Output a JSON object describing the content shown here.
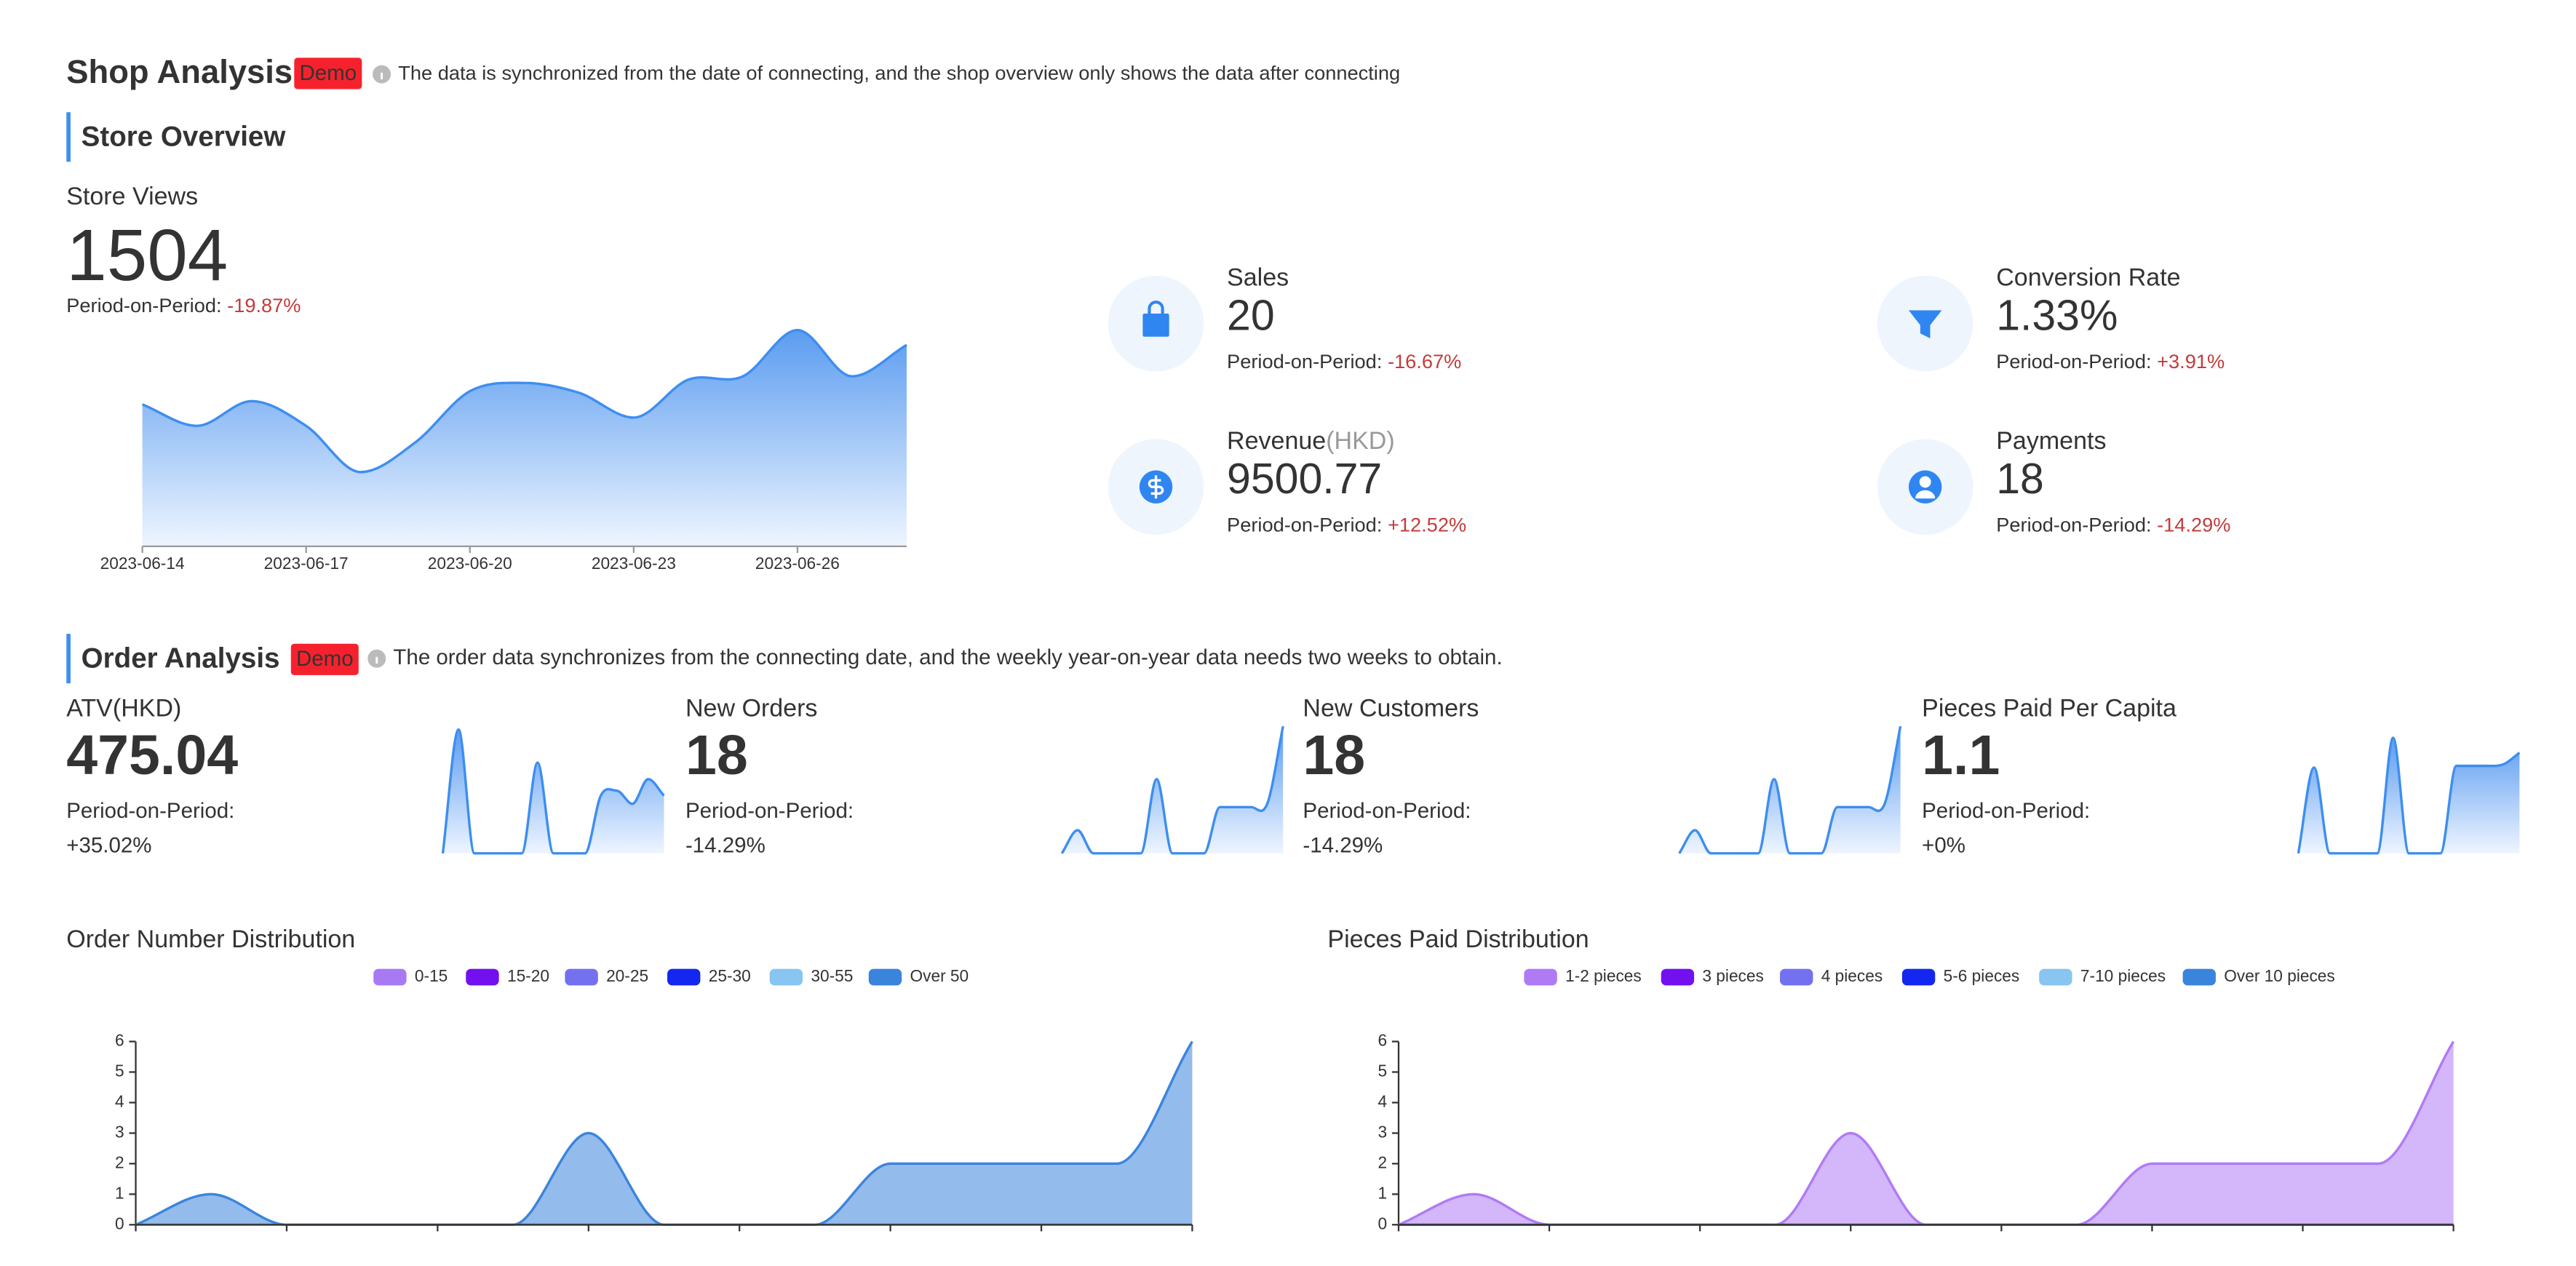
{
  "header": {
    "title": "Shop Analysis",
    "badge": "Demo",
    "note": "The data is synchronized from the date of connecting, and the shop overview only shows the data after connecting"
  },
  "store_overview": {
    "title": "Store Overview",
    "store_views": {
      "label": "Store Views",
      "value": "1504",
      "change_label": "Period-on-Period:",
      "change": "-19.87%"
    },
    "metrics": [
      {
        "label": "Sales",
        "value": "20",
        "change_label": "Period-on-Period:",
        "change": "-16.67%"
      },
      {
        "label": "Conversion Rate",
        "value": "1.33%",
        "change_label": "Period-on-Period:",
        "change": "+3.91%"
      },
      {
        "label": "Revenue",
        "unit": "(HKD)",
        "value": "9500.77",
        "change_label": "Period-on-Period:",
        "change": "+12.52%"
      },
      {
        "label": "Payments",
        "value": "18",
        "change_label": "Period-on-Period:",
        "change": "-14.29%"
      }
    ]
  },
  "order_analysis": {
    "title": "Order Analysis",
    "badge": "Demo",
    "note": "The order data synchronizes from the connecting date, and the weekly year-on-year data needs two weeks to obtain.",
    "kpis": [
      {
        "label": "ATV(HKD)",
        "value": "475.04",
        "change_label": "Period-on-Period:",
        "change": "+35.02%"
      },
      {
        "label": "New Orders",
        "value": "18",
        "change_label": "Period-on-Period:",
        "change": "-14.29%"
      },
      {
        "label": "New Customers",
        "value": "18",
        "change_label": "Period-on-Period:",
        "change": "-14.29%"
      },
      {
        "label": "Pieces Paid Per Capita",
        "value": "1.1",
        "change_label": "Period-on-Period:",
        "change": "+0%"
      }
    ]
  },
  "chart_data": [
    {
      "type": "area",
      "categories": [
        "2023-06-14",
        null,
        null,
        "2023-06-17",
        null,
        null,
        "2023-06-20",
        null,
        null,
        "2023-06-23",
        null,
        null,
        "2023-06-26",
        null,
        null
      ],
      "values": [
        86,
        73,
        88,
        73,
        45,
        63,
        94,
        99,
        93,
        78,
        101,
        103,
        131,
        103,
        122
      ],
      "color": "#3d8ef0"
    },
    {
      "type": "sparkline",
      "values": [
        0,
        75,
        0,
        0,
        0,
        0,
        55,
        0,
        0,
        0,
        35,
        38,
        30,
        45,
        35
      ],
      "color": "#3d8ef0"
    },
    {
      "type": "sparkline",
      "values": [
        0,
        14,
        0,
        0,
        0,
        0,
        45,
        0,
        0,
        0,
        28,
        28,
        28,
        30,
        77
      ],
      "color": "#3d8ef0"
    },
    {
      "type": "sparkline",
      "values": [
        0,
        14,
        0,
        0,
        0,
        0,
        45,
        0,
        0,
        0,
        28,
        28,
        28,
        30,
        77
      ],
      "color": "#3d8ef0"
    },
    {
      "type": "sparkline",
      "values": [
        0,
        52,
        0,
        0,
        0,
        0,
        70,
        0,
        0,
        0,
        53,
        53,
        53,
        54,
        61
      ],
      "color": "#3d8ef0"
    },
    {
      "type": "area",
      "title": "Order Number Distribution",
      "categories": [
        null,
        null,
        null,
        null,
        null,
        null,
        null,
        null,
        null,
        null,
        null,
        null,
        null,
        null,
        null
      ],
      "ylim": [
        0,
        6
      ],
      "yticks": [
        0,
        1,
        2,
        3,
        4,
        5,
        6
      ],
      "series": [
        {
          "name": "0-15",
          "color": "#a77af4",
          "values": [
            0,
            0,
            0,
            0,
            0,
            0,
            0,
            0,
            0,
            0,
            0,
            0,
            0,
            0,
            0
          ]
        },
        {
          "name": "15-20",
          "color": "#7210f0",
          "values": [
            0,
            0,
            0,
            0,
            0,
            0,
            0,
            0,
            0,
            0,
            0,
            0,
            0,
            0,
            0
          ]
        },
        {
          "name": "20-25",
          "color": "#7371f0",
          "values": [
            0,
            0,
            0,
            0,
            0,
            0,
            0,
            0,
            0,
            0,
            0,
            0,
            0,
            0,
            0
          ]
        },
        {
          "name": "25-30",
          "color": "#1427f0",
          "values": [
            0,
            0,
            0,
            0,
            0,
            0,
            0,
            0,
            0,
            0,
            0,
            0,
            0,
            0,
            0
          ]
        },
        {
          "name": "30-55",
          "color": "#88c5f0",
          "values": [
            0,
            0,
            0,
            0,
            0,
            0,
            0,
            0,
            0,
            0,
            0,
            0,
            0,
            0,
            0
          ]
        },
        {
          "name": "Over 50",
          "color": "#3b84dc",
          "values": [
            0,
            1,
            0,
            0,
            0,
            0,
            3,
            0,
            0,
            0,
            2,
            2,
            2,
            2,
            6
          ]
        }
      ]
    },
    {
      "type": "area",
      "title": "Pieces Paid Distribution",
      "categories": [
        null,
        null,
        null,
        null,
        null,
        null,
        null,
        null,
        null,
        null,
        null,
        null,
        null,
        null,
        null
      ],
      "ylim": [
        0,
        6
      ],
      "yticks": [
        0,
        1,
        2,
        3,
        4,
        5,
        6
      ],
      "series": [
        {
          "name": "1-2 pieces",
          "color": "#b07af5",
          "values": [
            0,
            1,
            0,
            0,
            0,
            0,
            3,
            0,
            0,
            0,
            2,
            2,
            2,
            2,
            6
          ]
        },
        {
          "name": "3 pieces",
          "color": "#7210f0",
          "values": [
            0,
            0,
            0,
            0,
            0,
            0,
            0,
            0,
            0,
            0,
            0,
            0,
            0,
            0,
            0
          ]
        },
        {
          "name": "4 pieces",
          "color": "#7371f0",
          "values": [
            0,
            0,
            0,
            0,
            0,
            0,
            0,
            0,
            0,
            0,
            0,
            0,
            0,
            0,
            0
          ]
        },
        {
          "name": "5-6 pieces",
          "color": "#1427f0",
          "values": [
            0,
            0,
            0,
            0,
            0,
            0,
            0,
            0,
            0,
            0,
            0,
            0,
            0,
            0,
            0
          ]
        },
        {
          "name": "7-10 pieces",
          "color": "#88c5f0",
          "values": [
            0,
            0,
            0,
            0,
            0,
            0,
            0,
            0,
            0,
            0,
            0,
            0,
            0,
            0,
            0
          ]
        },
        {
          "name": "Over 10 pieces",
          "color": "#3b84dc",
          "values": [
            0,
            0,
            0,
            0,
            0,
            0,
            0,
            0,
            0,
            0,
            0,
            0,
            0,
            0,
            0
          ]
        }
      ]
    }
  ]
}
